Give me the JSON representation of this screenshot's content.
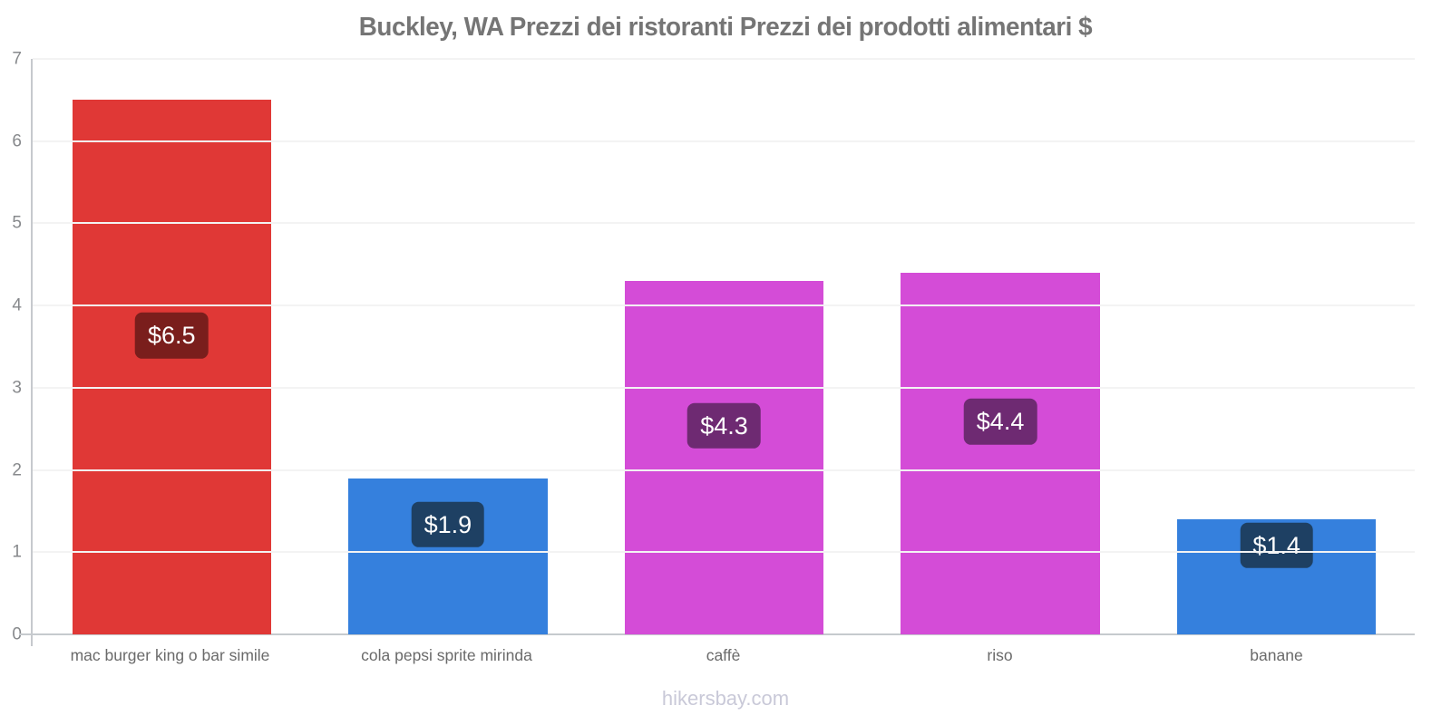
{
  "chart_data": {
    "type": "bar",
    "title": "Buckley, WA Prezzi dei ristoranti Prezzi dei prodotti alimentari $",
    "categories": [
      "mac burger king o bar simile",
      "cola pepsi sprite mirinda",
      "caffè",
      "riso",
      "banane"
    ],
    "values": [
      6.5,
      1.9,
      4.3,
      4.4,
      1.4
    ],
    "value_labels": [
      "$6.5",
      "$1.9",
      "$4.3",
      "$4.4",
      "$1.4"
    ],
    "bar_colors": [
      "#e03836",
      "#3580dd",
      "#d44cd7",
      "#d44cd7",
      "#3580dd"
    ],
    "badge_colors": [
      "#7a1e1c",
      "#1e4063",
      "#6e2a72",
      "#6e2a72",
      "#1e4063"
    ],
    "currency": "$",
    "ylim": [
      0,
      7
    ],
    "yticks": [
      0,
      1,
      2,
      3,
      4,
      5,
      6,
      7
    ],
    "grid": "horizontal-light",
    "legend": "none"
  },
  "footer": {
    "watermark": "hikersbay.com"
  },
  "colors": {
    "background": "#ffffff",
    "title_text": "#757575",
    "axis_line": "#c6c9cd",
    "gridline": "#f3f3f3",
    "ytick_text": "#87898c",
    "category_text": "#6a6a6a",
    "badge_text": "#ffffff",
    "watermark_text": "#c9c9d8"
  }
}
